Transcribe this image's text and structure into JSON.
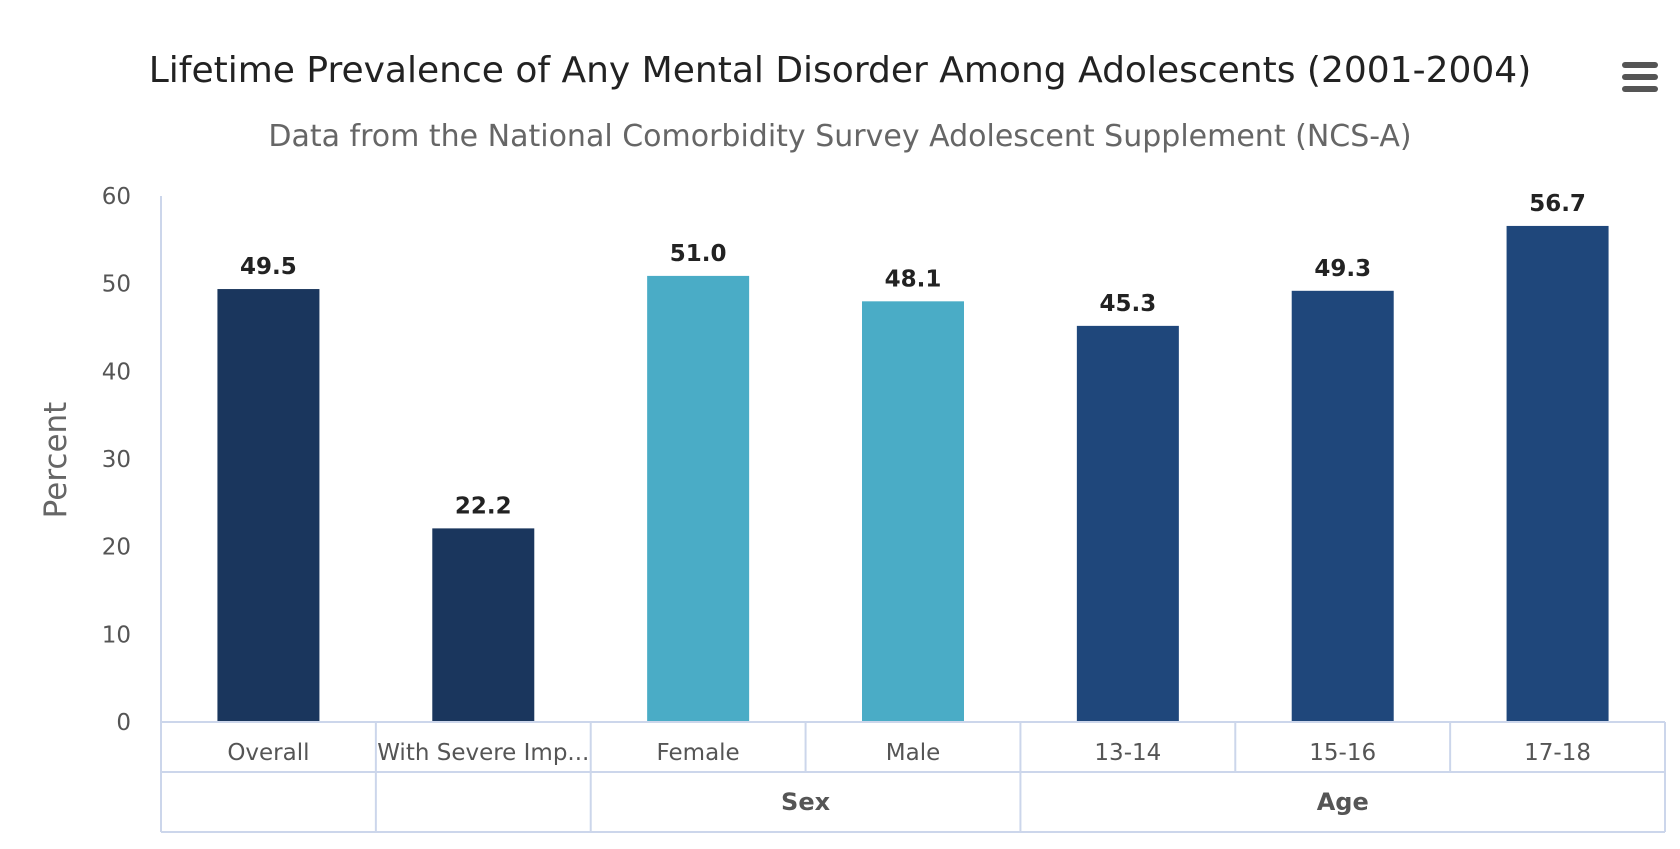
{
  "menu": {
    "icon": "hamburger-menu-icon",
    "color": "#555555"
  },
  "chart_data": {
    "type": "bar",
    "title": "Lifetime Prevalence of Any Mental Disorder Among Adolescents (2001-2004)",
    "subtitle": "Data from the National Comorbidity Survey Adolescent Supplement (NCS-A)",
    "ylabel": "Percent",
    "xlabel": "",
    "ylim": [
      0,
      60
    ],
    "yticks": [
      0,
      10,
      20,
      30,
      40,
      50,
      60
    ],
    "grid": false,
    "legend": "none",
    "categories": [
      "Overall",
      "With Severe Imp...",
      "Female",
      "Male",
      "13-14",
      "15-16",
      "17-18"
    ],
    "values": [
      49.5,
      22.2,
      51.0,
      48.1,
      45.3,
      49.3,
      56.7
    ],
    "data_labels": [
      "49.5",
      "22.2",
      "51.0",
      "48.1",
      "45.3",
      "49.3",
      "56.7"
    ],
    "colors": [
      "#1a365d",
      "#1a365d",
      "#4aacc6",
      "#4aacc6",
      "#1f477b",
      "#1f477b",
      "#1f477b"
    ],
    "groups": [
      {
        "label": "",
        "span": 1
      },
      {
        "label": "",
        "span": 1
      },
      {
        "label": "Sex",
        "span": 2
      },
      {
        "label": "Age",
        "span": 3
      }
    ]
  }
}
